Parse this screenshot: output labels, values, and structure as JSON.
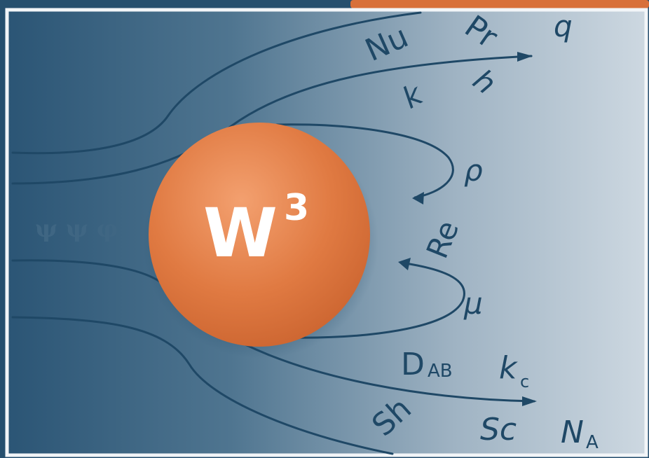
{
  "colors": {
    "background_dark": "#2b5575",
    "background_light": "#c3d0da",
    "border": "#f2f5f8",
    "sphere": "#e07a42",
    "sphere_highlight": "#f3a06f",
    "accent_bar": "#d8703a",
    "ink": "#1f4866"
  },
  "sphere": {
    "title": "W",
    "superscript": "3"
  },
  "upper_symbols": {
    "nu": "Nu",
    "pr": "Pr",
    "q": "q",
    "k": "k",
    "h": "h"
  },
  "middle_symbols": {
    "rho": "ρ",
    "re": "Re",
    "mu": "μ",
    "greek_row": "ψ ψ φ"
  },
  "lower_symbols": {
    "d": "D",
    "ab": "AB",
    "k": "k",
    "c": "c",
    "sh": "Sh",
    "sc": "Sc",
    "n": "N",
    "a": "A"
  }
}
